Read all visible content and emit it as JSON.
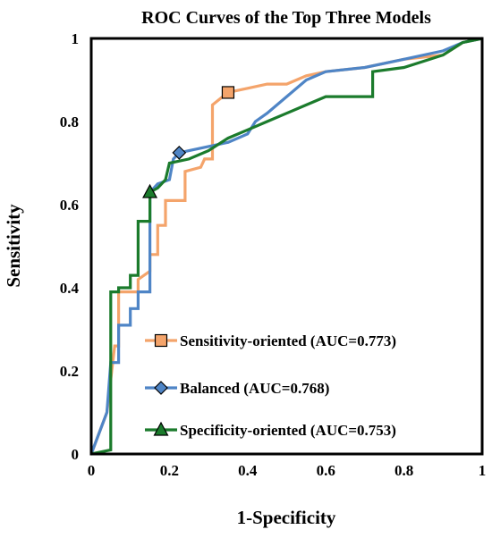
{
  "chart_data": {
    "type": "line",
    "title": "ROC Curves of the Top Three Models",
    "xlabel": "1-Specificity",
    "ylabel": "Sensitivity",
    "xlim": [
      0,
      1
    ],
    "ylim": [
      0,
      1
    ],
    "x_ticks": [
      "0",
      "0.2",
      "0.4",
      "0.6",
      "0.8",
      "1"
    ],
    "y_ticks": [
      "0",
      "0.2",
      "0.4",
      "0.6",
      "0.8",
      "1"
    ],
    "grid": false,
    "legend_position": "lower-right",
    "series": [
      {
        "name": "Sensitivity-oriented (AUC=0.773)",
        "color": "#F4A46B",
        "marker": "square",
        "marker_point": [
          0.35,
          0.87
        ],
        "points": [
          [
            0,
            0
          ],
          [
            0.04,
            0.1
          ],
          [
            0.06,
            0.26
          ],
          [
            0.07,
            0.26
          ],
          [
            0.07,
            0.39
          ],
          [
            0.12,
            0.39
          ],
          [
            0.12,
            0.42
          ],
          [
            0.15,
            0.44
          ],
          [
            0.15,
            0.48
          ],
          [
            0.17,
            0.48
          ],
          [
            0.17,
            0.55
          ],
          [
            0.19,
            0.55
          ],
          [
            0.19,
            0.61
          ],
          [
            0.24,
            0.61
          ],
          [
            0.24,
            0.68
          ],
          [
            0.28,
            0.69
          ],
          [
            0.29,
            0.71
          ],
          [
            0.31,
            0.71
          ],
          [
            0.31,
            0.84
          ],
          [
            0.35,
            0.87
          ],
          [
            0.4,
            0.88
          ],
          [
            0.45,
            0.89
          ],
          [
            0.5,
            0.89
          ],
          [
            0.55,
            0.91
          ],
          [
            0.6,
            0.92
          ],
          [
            0.7,
            0.93
          ],
          [
            0.8,
            0.95
          ],
          [
            0.9,
            0.96
          ],
          [
            0.95,
            0.99
          ],
          [
            1,
            1
          ]
        ]
      },
      {
        "name": "Balanced (AUC=0.768)",
        "color": "#4F85C6",
        "marker": "diamond",
        "marker_point": [
          0.225,
          0.725
        ],
        "points": [
          [
            0,
            0
          ],
          [
            0.04,
            0.1
          ],
          [
            0.05,
            0.22
          ],
          [
            0.07,
            0.22
          ],
          [
            0.07,
            0.31
          ],
          [
            0.1,
            0.31
          ],
          [
            0.1,
            0.35
          ],
          [
            0.12,
            0.35
          ],
          [
            0.12,
            0.39
          ],
          [
            0.15,
            0.39
          ],
          [
            0.15,
            0.63
          ],
          [
            0.17,
            0.65
          ],
          [
            0.2,
            0.66
          ],
          [
            0.21,
            0.71
          ],
          [
            0.225,
            0.725
          ],
          [
            0.25,
            0.73
          ],
          [
            0.3,
            0.74
          ],
          [
            0.35,
            0.75
          ],
          [
            0.4,
            0.77
          ],
          [
            0.42,
            0.8
          ],
          [
            0.45,
            0.82
          ],
          [
            0.5,
            0.86
          ],
          [
            0.55,
            0.9
          ],
          [
            0.6,
            0.92
          ],
          [
            0.7,
            0.93
          ],
          [
            0.8,
            0.95
          ],
          [
            0.9,
            0.97
          ],
          [
            0.95,
            0.99
          ],
          [
            1,
            1
          ]
        ]
      },
      {
        "name": "Specificity-oriented (AUC=0.753)",
        "color": "#1B7B2C",
        "marker": "triangle",
        "marker_point": [
          0.15,
          0.63
        ],
        "points": [
          [
            0,
            0
          ],
          [
            0.05,
            0.01
          ],
          [
            0.05,
            0.39
          ],
          [
            0.07,
            0.39
          ],
          [
            0.07,
            0.4
          ],
          [
            0.1,
            0.4
          ],
          [
            0.1,
            0.43
          ],
          [
            0.12,
            0.43
          ],
          [
            0.12,
            0.56
          ],
          [
            0.15,
            0.56
          ],
          [
            0.15,
            0.63
          ],
          [
            0.17,
            0.64
          ],
          [
            0.19,
            0.66
          ],
          [
            0.2,
            0.7
          ],
          [
            0.25,
            0.71
          ],
          [
            0.3,
            0.73
          ],
          [
            0.35,
            0.76
          ],
          [
            0.4,
            0.78
          ],
          [
            0.45,
            0.8
          ],
          [
            0.5,
            0.82
          ],
          [
            0.55,
            0.84
          ],
          [
            0.6,
            0.86
          ],
          [
            0.72,
            0.86
          ],
          [
            0.72,
            0.92
          ],
          [
            0.8,
            0.93
          ],
          [
            0.9,
            0.96
          ],
          [
            0.95,
            0.99
          ],
          [
            1,
            1
          ]
        ]
      }
    ]
  }
}
